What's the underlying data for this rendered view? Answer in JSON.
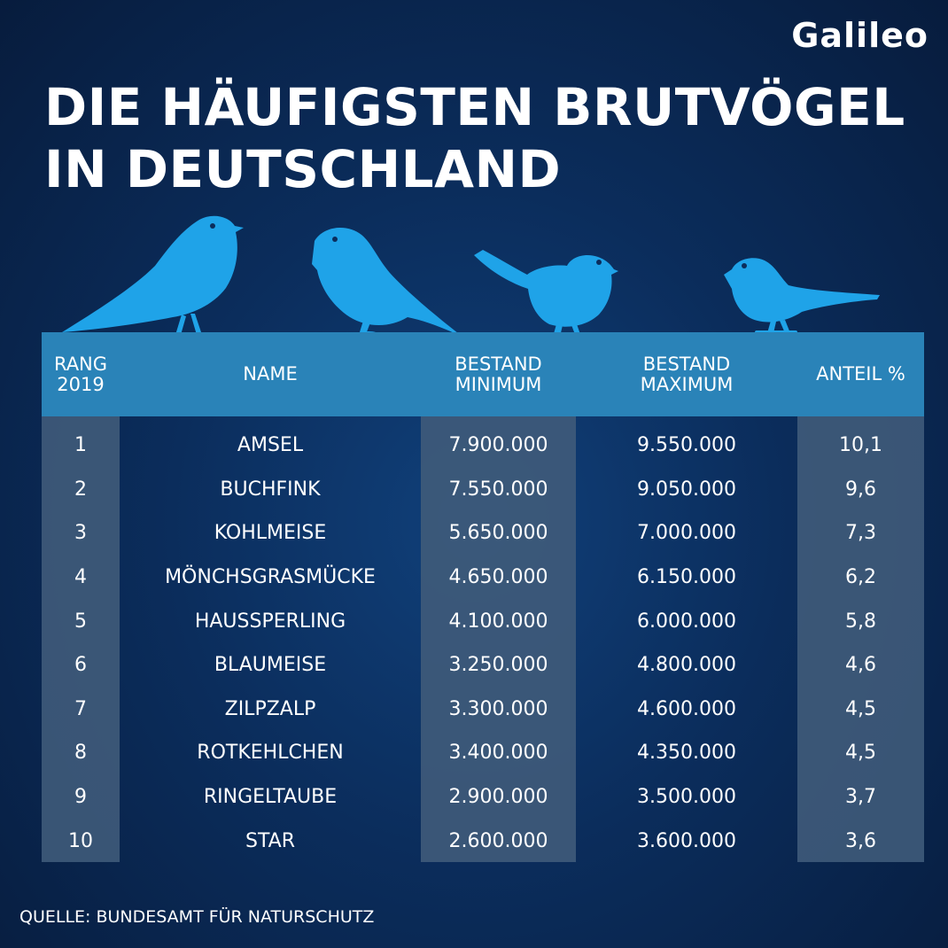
{
  "brand": {
    "logo_text": "Galileo"
  },
  "title": {
    "line1": "DIE HÄUFIGSTEN BRUTVÖGEL",
    "line2": "IN DEUTSCHLAND"
  },
  "colors": {
    "header": "#2a83b8",
    "bird": "#1fa3e8",
    "column_shade": "#3f5b7a",
    "background": "#0b2d5c"
  },
  "source": "QUELLE: BUNDESAMT FÜR NATURSCHUTZ",
  "chart_data": {
    "type": "table",
    "columns": [
      {
        "key": "rank",
        "label_line1": "RANG",
        "label_line2": "2019"
      },
      {
        "key": "name",
        "label_line1": "NAME",
        "label_line2": ""
      },
      {
        "key": "min",
        "label_line1": "BESTAND",
        "label_line2": "MINIMUM"
      },
      {
        "key": "max",
        "label_line1": "BESTAND",
        "label_line2": "MAXIMUM"
      },
      {
        "key": "share",
        "label_line1": "ANTEIL %",
        "label_line2": ""
      }
    ],
    "rows": [
      {
        "rank": "1",
        "name": "AMSEL",
        "min": "7.900.000",
        "max": "9.550.000",
        "share": "10,1"
      },
      {
        "rank": "2",
        "name": "BUCHFINK",
        "min": "7.550.000",
        "max": "9.050.000",
        "share": "9,6"
      },
      {
        "rank": "3",
        "name": "KOHLMEISE",
        "min": "5.650.000",
        "max": "7.000.000",
        "share": "7,3"
      },
      {
        "rank": "4",
        "name": "MÖNCHSGRASMÜCKE",
        "min": "4.650.000",
        "max": "6.150.000",
        "share": "6,2"
      },
      {
        "rank": "5",
        "name": "HAUSSPERLING",
        "min": "4.100.000",
        "max": "6.000.000",
        "share": "5,8"
      },
      {
        "rank": "6",
        "name": "BLAUMEISE",
        "min": "3.250.000",
        "max": "4.800.000",
        "share": "4,6"
      },
      {
        "rank": "7",
        "name": "ZILPZALP",
        "min": "3.300.000",
        "max": "4.600.000",
        "share": "4,5"
      },
      {
        "rank": "8",
        "name": "ROTKEHLCHEN",
        "min": "3.400.000",
        "max": "4.350.000",
        "share": "4,5"
      },
      {
        "rank": "9",
        "name": "RINGELTAUBE",
        "min": "2.900.000",
        "max": "3.500.000",
        "share": "3,7"
      },
      {
        "rank": "10",
        "name": "STAR",
        "min": "2.600.000",
        "max": "3.600.000",
        "share": "3,6"
      }
    ]
  }
}
